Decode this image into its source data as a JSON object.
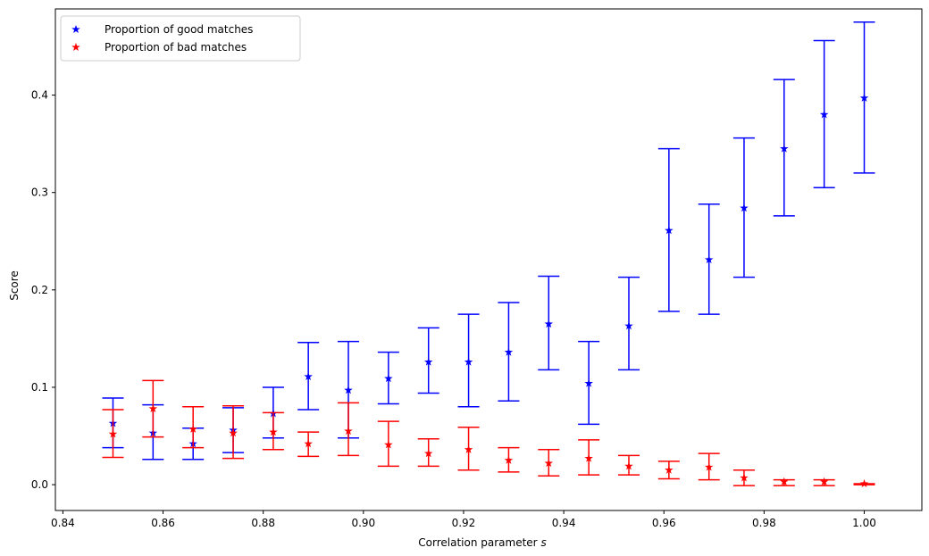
{
  "chart_data": {
    "type": "scatter",
    "xlabel": "Correlation parameter s",
    "xlabel_prefix": "Correlation parameter ",
    "xlabel_var": "s",
    "ylabel": "Score",
    "xlim": [
      0.8385,
      1.0115
    ],
    "ylim": [
      -0.0265,
      0.4885
    ],
    "xticks": [
      0.84,
      0.86,
      0.88,
      0.9,
      0.92,
      0.94,
      0.96,
      0.98,
      1.0
    ],
    "xtick_labels": [
      "0.84",
      "0.86",
      "0.88",
      "0.90",
      "0.92",
      "0.94",
      "0.96",
      "0.98",
      "1.00"
    ],
    "yticks": [
      0.0,
      0.1,
      0.2,
      0.3,
      0.4
    ],
    "ytick_labels": [
      "0.0",
      "0.1",
      "0.2",
      "0.3",
      "0.4"
    ],
    "grid": false,
    "legend_position": "top-left",
    "marker": "star",
    "error_bars": true,
    "x": [
      0.85,
      0.858,
      0.866,
      0.874,
      0.882,
      0.889,
      0.897,
      0.905,
      0.913,
      0.921,
      0.929,
      0.937,
      0.945,
      0.953,
      0.961,
      0.969,
      0.976,
      0.984,
      0.992,
      1.0
    ],
    "series": [
      {
        "name": "Proportion of good matches",
        "color": "#0000ff",
        "values": [
          0.063,
          0.053,
          0.042,
          0.056,
          0.073,
          0.111,
          0.097,
          0.109,
          0.126,
          0.126,
          0.136,
          0.165,
          0.104,
          0.163,
          0.261,
          0.231,
          0.284,
          0.345,
          0.38,
          0.397
        ],
        "lower": [
          0.038,
          0.026,
          0.026,
          0.033,
          0.048,
          0.077,
          0.048,
          0.083,
          0.094,
          0.08,
          0.086,
          0.118,
          0.062,
          0.118,
          0.178,
          0.175,
          0.213,
          0.276,
          0.305,
          0.32
        ],
        "upper": [
          0.089,
          0.082,
          0.058,
          0.079,
          0.1,
          0.146,
          0.147,
          0.136,
          0.161,
          0.175,
          0.187,
          0.214,
          0.147,
          0.213,
          0.345,
          0.288,
          0.356,
          0.416,
          0.456,
          0.475
        ]
      },
      {
        "name": "Proportion of bad matches",
        "color": "#ff0000",
        "values": [
          0.052,
          0.078,
          0.057,
          0.053,
          0.054,
          0.042,
          0.055,
          0.041,
          0.032,
          0.036,
          0.025,
          0.022,
          0.027,
          0.019,
          0.015,
          0.018,
          0.007,
          0.003,
          0.003,
          0.001
        ],
        "lower": [
          0.028,
          0.049,
          0.038,
          0.027,
          0.036,
          0.029,
          0.03,
          0.019,
          0.019,
          0.015,
          0.013,
          0.009,
          0.01,
          0.01,
          0.006,
          0.005,
          -0.001,
          -0.001,
          -0.001,
          0.0
        ],
        "upper": [
          0.077,
          0.107,
          0.08,
          0.081,
          0.074,
          0.054,
          0.084,
          0.065,
          0.047,
          0.059,
          0.038,
          0.036,
          0.046,
          0.03,
          0.024,
          0.032,
          0.015,
          0.005,
          0.005,
          0.001
        ]
      }
    ]
  }
}
